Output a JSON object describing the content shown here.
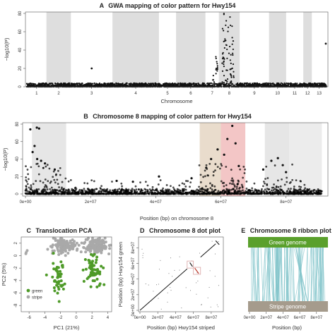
{
  "chart_data": [
    {
      "id": "A",
      "type": "scatter",
      "letter": "A",
      "title": "GWA mapping of color pattern for Hwy154",
      "xlabel": "Chromosome",
      "ylabel": "−log10(P)",
      "ylim": [
        0,
        80
      ],
      "yticks": [
        "0",
        "20",
        "40",
        "60",
        "80"
      ],
      "ytick_values": [
        0,
        20,
        40,
        60,
        80
      ],
      "chromosomes": [
        "1",
        "2",
        "3",
        "4",
        "5",
        "6",
        "7",
        "8",
        "9",
        "10",
        "11",
        "12",
        "13"
      ],
      "chrom_lengths_mb": [
        8,
        10,
        17,
        19,
        7,
        12,
        5.5,
        8.5,
        12,
        7,
        7,
        3.5,
        6
      ],
      "shaded_chromosomes": [
        "2",
        "4",
        "6",
        "8",
        "10",
        "12"
      ],
      "baseline_max": 4,
      "outliers": [
        {
          "chrom": "3",
          "pos_frac": 0.5,
          "y": 20
        },
        {
          "chrom": "13",
          "pos_frac": 0.95,
          "y": 47
        }
      ],
      "peak": {
        "chrom": "8",
        "pos_frac_range": [
          0.15,
          0.72
        ],
        "max": 80
      },
      "peak_side": {
        "chrom": "7",
        "pos_frac_range": [
          0.55,
          0.98
        ],
        "max": 35
      }
    },
    {
      "id": "B",
      "type": "scatter",
      "letter": "B",
      "title": "Chromosome 8 mapping of color pattern for Hwy154",
      "xlabel": "Position (bp) on chromosome 8",
      "ylabel": "−log10(P)",
      "xlim": [
        0,
        92000000
      ],
      "ylim": [
        0,
        80
      ],
      "xticks": [
        "0e+00",
        "2e+07",
        "4e+07",
        "6e+07",
        "8e+07"
      ],
      "xtick_values": [
        0,
        20000000,
        40000000,
        60000000,
        80000000
      ],
      "yticks": [
        "0",
        "20",
        "40",
        "60",
        "80"
      ],
      "ytick_values": [
        0,
        20,
        40,
        60,
        80
      ],
      "bands": [
        {
          "from": 2000000,
          "to": 12500000,
          "color": "#e6e6e6"
        },
        {
          "from": 53500000,
          "to": 60000000,
          "color": "#e9dccc"
        },
        {
          "from": 60000000,
          "to": 67500000,
          "color": "#f3c6c6"
        },
        {
          "from": 73500000,
          "to": 81000000,
          "color": "#e6e6e6"
        },
        {
          "from": 81000000,
          "to": 91000000,
          "color": "#ececec"
        }
      ],
      "highlights": [
        {
          "x": 3500000,
          "y": 76
        },
        {
          "x": 4200000,
          "y": 75
        },
        {
          "x": 1500000,
          "y": 74
        },
        {
          "x": 2800000,
          "y": 55
        },
        {
          "x": 2200000,
          "y": 48
        },
        {
          "x": 3600000,
          "y": 40
        },
        {
          "x": 4800000,
          "y": 38
        },
        {
          "x": 6000000,
          "y": 35
        },
        {
          "x": 9000000,
          "y": 28
        },
        {
          "x": 63500000,
          "y": 78
        },
        {
          "x": 62000000,
          "y": 63
        },
        {
          "x": 64500000,
          "y": 58
        },
        {
          "x": 59000000,
          "y": 51
        },
        {
          "x": 61000000,
          "y": 45
        },
        {
          "x": 57000000,
          "y": 40
        },
        {
          "x": 65500000,
          "y": 32
        },
        {
          "x": 55500000,
          "y": 30
        },
        {
          "x": 77500000,
          "y": 41
        },
        {
          "x": 75500000,
          "y": 38
        },
        {
          "x": 79000000,
          "y": 33
        },
        {
          "x": 73000000,
          "y": 28
        },
        {
          "x": 80000000,
          "y": 25
        },
        {
          "x": 41000000,
          "y": 20
        },
        {
          "x": 28000000,
          "y": 15
        },
        {
          "x": 33000000,
          "y": 14
        },
        {
          "x": 51000000,
          "y": 18
        }
      ]
    },
    {
      "id": "C",
      "type": "scatter",
      "letter": "C",
      "title": "Translocation PCA",
      "xlabel": "PC1 (21%)",
      "ylabel": "PC2 (5%)",
      "xlim": [
        -7,
        4.5
      ],
      "ylim": [
        -9,
        3
      ],
      "xticks": [
        "-6",
        "-4",
        "-2",
        "0",
        "2",
        "4"
      ],
      "xtick_values": [
        -6,
        -4,
        -2,
        0,
        2,
        4
      ],
      "yticks": [
        "-8",
        "-6",
        "-4",
        "-2",
        "0",
        "2"
      ],
      "ytick_values": [
        -8,
        -6,
        -4,
        -2,
        0,
        2
      ],
      "legend": {
        "placement": "bottom-left",
        "entries": [
          "green",
          "stripe"
        ]
      },
      "series": [
        {
          "name": "green",
          "color": "#4e9a28",
          "clusters": [
            {
              "cx": -2.2,
              "cy": -3.7,
              "sx": 0.45,
              "sy": 1.7,
              "n": 45
            },
            {
              "cx": 2.2,
              "cy": -2.4,
              "sx": 0.55,
              "sy": 1.6,
              "n": 60
            }
          ]
        },
        {
          "name": "stripe",
          "color": "#a9a9a9",
          "clusters": [
            {
              "cx": -1.6,
              "cy": 1.6,
              "sx": 0.75,
              "sy": 0.5,
              "n": 150
            },
            {
              "cx": 2.6,
              "cy": 1.6,
              "sx": 0.75,
              "sy": 0.55,
              "n": 160
            },
            {
              "cx": -6.2,
              "cy": 0.5,
              "sx": 0.1,
              "sy": 0.2,
              "n": 3
            }
          ]
        }
      ]
    },
    {
      "id": "D",
      "type": "scatter",
      "letter": "D",
      "title": "Chromosome 8 dot plot",
      "xlabel": "Position (bp) Hwy154 striped",
      "ylabel": "Position (bp) Hwy154 green",
      "xlim": [
        0,
        92000000
      ],
      "ylim": [
        0,
        92000000
      ],
      "xticks": [
        "0e+00",
        "2e+07",
        "4e+07",
        "6e+07",
        "8e+07"
      ],
      "xtick_values": [
        0,
        20000000,
        40000000,
        60000000,
        80000000
      ],
      "yticks": [
        "0e+00",
        "2e+07",
        "4e+07",
        "6e+07",
        "8e+07"
      ],
      "ytick_values": [
        0,
        20000000,
        40000000,
        60000000,
        80000000
      ],
      "boxes": [
        {
          "x0": 53000000,
          "x1": 60000000,
          "y0": 54000000,
          "y1": 63000000,
          "color": "#d9a3a3"
        },
        {
          "x0": 60000000,
          "x1": 68000000,
          "y0": 46000000,
          "y1": 55000000,
          "color": "#d9a3a3"
        }
      ],
      "inversions": [
        {
          "x0": 56000000,
          "x1": 59000000,
          "y0": 61000000,
          "y1": 56000000,
          "color": "#222222"
        },
        {
          "x0": 61500000,
          "x1": 66000000,
          "y0": 54000000,
          "y1": 47000000,
          "color": "#c0392b"
        },
        {
          "x0": 85000000,
          "x1": 89000000,
          "y0": 89000000,
          "y1": 84000000,
          "color": "#222222"
        }
      ]
    },
    {
      "id": "E",
      "type": "ribbon",
      "letter": "E",
      "title": "Chromosome 8 ribbon plot",
      "xlabel": "Position (bp)",
      "xlim": [
        0,
        92000000
      ],
      "xticks": [
        "0e+00",
        "2e+07",
        "4e+07",
        "6e+07",
        "8e+07"
      ],
      "xtick_values": [
        0,
        20000000,
        40000000,
        60000000,
        80000000
      ],
      "top_label": "Green genome",
      "bottom_label": "Stripe genome",
      "top_color": "#5aa02c",
      "bottom_color": "#a59b8c",
      "ribbon_color": "#7fc3c9"
    }
  ]
}
